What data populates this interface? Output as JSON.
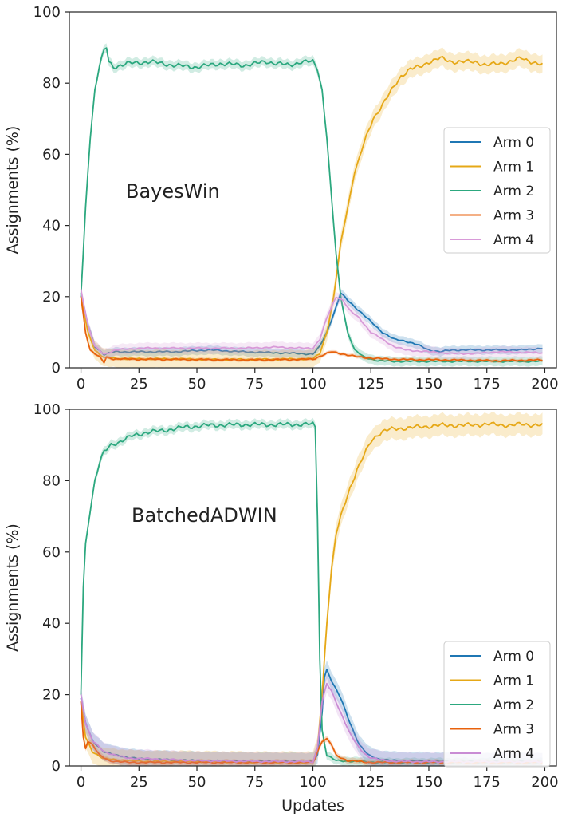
{
  "chart_data": [
    {
      "type": "line",
      "annotation": "BayesWin",
      "xlabel": "",
      "ylabel": "Assignments (%)",
      "xlim": [
        -5,
        205
      ],
      "ylim": [
        0,
        100
      ],
      "xticks": [
        0,
        25,
        50,
        75,
        100,
        125,
        150,
        175,
        200
      ],
      "yticks": [
        0,
        20,
        40,
        60,
        80,
        100
      ],
      "legend_position": "center-right",
      "series": [
        {
          "name": "Arm 0",
          "color": "#1f77b4",
          "points": [
            [
              0,
              21
            ],
            [
              3,
              12
            ],
            [
              6,
              6
            ],
            [
              10,
              3.8
            ],
            [
              15,
              4.5
            ],
            [
              25,
              4.5
            ],
            [
              40,
              4.5
            ],
            [
              55,
              5
            ],
            [
              70,
              4.5
            ],
            [
              85,
              4.2
            ],
            [
              95,
              4
            ],
            [
              100,
              3.8
            ],
            [
              103,
              6
            ],
            [
              106,
              10
            ],
            [
              110,
              17
            ],
            [
              112,
              21
            ],
            [
              115,
              19
            ],
            [
              120,
              16
            ],
            [
              125,
              13
            ],
            [
              130,
              10
            ],
            [
              135,
              8
            ],
            [
              140,
              7.5
            ],
            [
              145,
              6.5
            ],
            [
              150,
              5
            ],
            [
              155,
              4.5
            ],
            [
              160,
              5
            ],
            [
              170,
              5
            ],
            [
              180,
              5
            ],
            [
              190,
              5
            ],
            [
              199,
              5.5
            ]
          ],
          "band": 1.2
        },
        {
          "name": "Arm 1",
          "color": "#e6a817",
          "points": [
            [
              0,
              20
            ],
            [
              3,
              10
            ],
            [
              6,
              5
            ],
            [
              10,
              2.8
            ],
            [
              20,
              2.5
            ],
            [
              40,
              2.5
            ],
            [
              60,
              2.3
            ],
            [
              80,
              2.4
            ],
            [
              100,
              2.5
            ],
            [
              103,
              4
            ],
            [
              106,
              10
            ],
            [
              109,
              20
            ],
            [
              112,
              35
            ],
            [
              115,
              45
            ],
            [
              118,
              55
            ],
            [
              122,
              63
            ],
            [
              126,
              70
            ],
            [
              130,
              74
            ],
            [
              134,
              78
            ],
            [
              138,
              82
            ],
            [
              142,
              84
            ],
            [
              146,
              84.5
            ],
            [
              150,
              86
            ],
            [
              155,
              87
            ],
            [
              160,
              86
            ],
            [
              170,
              86
            ],
            [
              175,
              85
            ],
            [
              185,
              86
            ],
            [
              190,
              87
            ],
            [
              199,
              85
            ]
          ],
          "band": 2.5
        },
        {
          "name": "Arm 2",
          "color": "#2ca87f",
          "points": [
            [
              0,
              20
            ],
            [
              2,
              45
            ],
            [
              4,
              65
            ],
            [
              6,
              78
            ],
            [
              8,
              85
            ],
            [
              10,
              89
            ],
            [
              11,
              90
            ],
            [
              12,
              86
            ],
            [
              14,
              84.5
            ],
            [
              20,
              85.5
            ],
            [
              30,
              86
            ],
            [
              40,
              85
            ],
            [
              50,
              84.5
            ],
            [
              60,
              85.5
            ],
            [
              70,
              85
            ],
            [
              80,
              86
            ],
            [
              90,
              85
            ],
            [
              95,
              86
            ],
            [
              100,
              86
            ],
            [
              102,
              84
            ],
            [
              104,
              78
            ],
            [
              106,
              65
            ],
            [
              108,
              48
            ],
            [
              110,
              32
            ],
            [
              112,
              20
            ],
            [
              115,
              10
            ],
            [
              118,
              5
            ],
            [
              122,
              3
            ],
            [
              128,
              2
            ],
            [
              135,
              1.8
            ],
            [
              150,
              1.8
            ],
            [
              175,
              1.8
            ],
            [
              199,
              1.8
            ]
          ],
          "band": 1.3
        },
        {
          "name": "Arm 3",
          "color": "#e8620c",
          "points": [
            [
              0,
              20
            ],
            [
              2,
              10
            ],
            [
              4,
              5
            ],
            [
              8,
              3
            ],
            [
              10,
              1.5
            ],
            [
              11,
              3
            ],
            [
              14,
              2.5
            ],
            [
              25,
              2.4
            ],
            [
              50,
              2.3
            ],
            [
              75,
              2.2
            ],
            [
              100,
              2.4
            ],
            [
              104,
              3.5
            ],
            [
              108,
              4.5
            ],
            [
              112,
              4
            ],
            [
              120,
              3
            ],
            [
              130,
              2.5
            ],
            [
              140,
              2.3
            ],
            [
              160,
              2.2
            ],
            [
              180,
              2
            ],
            [
              199,
              2.2
            ]
          ],
          "band": 0.5
        },
        {
          "name": "Arm 4",
          "color": "#d89ad8",
          "points": [
            [
              0,
              22
            ],
            [
              3,
              12
            ],
            [
              6,
              6
            ],
            [
              10,
              3.8
            ],
            [
              15,
              5
            ],
            [
              25,
              5.5
            ],
            [
              40,
              5.5
            ],
            [
              55,
              5.5
            ],
            [
              70,
              5.5
            ],
            [
              85,
              5.8
            ],
            [
              95,
              5.5
            ],
            [
              100,
              5.5
            ],
            [
              103,
              8
            ],
            [
              106,
              14
            ],
            [
              110,
              20
            ],
            [
              113,
              19
            ],
            [
              116,
              16
            ],
            [
              120,
              14
            ],
            [
              125,
              10
            ],
            [
              130,
              8
            ],
            [
              135,
              6
            ],
            [
              140,
              5
            ],
            [
              150,
              4.5
            ],
            [
              160,
              4
            ],
            [
              170,
              4
            ],
            [
              180,
              4.5
            ],
            [
              199,
              4.2
            ]
          ],
          "band": 1.5
        }
      ]
    },
    {
      "type": "line",
      "annotation": "BatchedADWIN",
      "xlabel": "Updates",
      "ylabel": "Assignments (%)",
      "xlim": [
        -5,
        205
      ],
      "ylim": [
        0,
        100
      ],
      "xticks": [
        0,
        25,
        50,
        75,
        100,
        125,
        150,
        175,
        200
      ],
      "yticks": [
        0,
        20,
        40,
        60,
        80,
        100
      ],
      "legend_position": "lower-right",
      "series": [
        {
          "name": "Arm 0",
          "color": "#1f77b4",
          "points": [
            [
              0,
              19
            ],
            [
              2,
              12
            ],
            [
              5,
              7
            ],
            [
              10,
              4
            ],
            [
              15,
              3
            ],
            [
              25,
              2
            ],
            [
              50,
              1.5
            ],
            [
              75,
              1.3
            ],
            [
              100,
              1.2
            ],
            [
              102,
              3
            ],
            [
              104,
              15
            ],
            [
              105,
              25
            ],
            [
              106,
              27
            ],
            [
              108,
              24
            ],
            [
              112,
              19
            ],
            [
              116,
              12
            ],
            [
              120,
              6
            ],
            [
              124,
              3
            ],
            [
              128,
              2
            ],
            [
              135,
              1.5
            ],
            [
              150,
              1.3
            ],
            [
              175,
              1.2
            ],
            [
              199,
              1.2
            ]
          ],
          "band": 2.5
        },
        {
          "name": "Arm 1",
          "color": "#e6a817",
          "points": [
            [
              0,
              18
            ],
            [
              2,
              8
            ],
            [
              5,
              4
            ],
            [
              10,
              2
            ],
            [
              25,
              1.3
            ],
            [
              50,
              1.2
            ],
            [
              75,
              1
            ],
            [
              100,
              1
            ],
            [
              102,
              5
            ],
            [
              104,
              20
            ],
            [
              106,
              40
            ],
            [
              108,
              55
            ],
            [
              110,
              65
            ],
            [
              113,
              72
            ],
            [
              116,
              78
            ],
            [
              119,
              83
            ],
            [
              122,
              87
            ],
            [
              125,
              91
            ],
            [
              128,
              93
            ],
            [
              131,
              94
            ],
            [
              135,
              94.5
            ],
            [
              145,
              95
            ],
            [
              155,
              95.5
            ],
            [
              165,
              95.5
            ],
            [
              175,
              95.8
            ],
            [
              185,
              95.5
            ],
            [
              190,
              95.8
            ],
            [
              199,
              95.5
            ]
          ],
          "band": 3
        },
        {
          "name": "Arm 2",
          "color": "#2ca87f",
          "points": [
            [
              0,
              20
            ],
            [
              1,
              50
            ],
            [
              2,
              62
            ],
            [
              4,
              72
            ],
            [
              6,
              80
            ],
            [
              8,
              85
            ],
            [
              10,
              88
            ],
            [
              13,
              90
            ],
            [
              17,
              91
            ],
            [
              22,
              92.5
            ],
            [
              28,
              93.5
            ],
            [
              35,
              94
            ],
            [
              45,
              95
            ],
            [
              55,
              95.5
            ],
            [
              70,
              95.7
            ],
            [
              85,
              95.7
            ],
            [
              100,
              95.8
            ],
            [
              101,
              95
            ],
            [
              102,
              70
            ],
            [
              103,
              30
            ],
            [
              104,
              10
            ],
            [
              106,
              3
            ],
            [
              110,
              1.5
            ],
            [
              130,
              1
            ],
            [
              199,
              1
            ]
          ],
          "band": 1.2
        },
        {
          "name": "Arm 3",
          "color": "#e8620c",
          "points": [
            [
              0,
              18
            ],
            [
              1,
              8
            ],
            [
              2,
              5
            ],
            [
              3,
              7
            ],
            [
              5,
              6
            ],
            [
              8,
              3
            ],
            [
              12,
              1.5
            ],
            [
              20,
              1
            ],
            [
              50,
              1
            ],
            [
              75,
              1
            ],
            [
              100,
              1
            ],
            [
              102,
              4
            ],
            [
              104,
              7
            ],
            [
              106,
              7.5
            ],
            [
              108,
              6
            ],
            [
              110,
              3
            ],
            [
              115,
              1.5
            ],
            [
              125,
              1
            ],
            [
              150,
              1
            ],
            [
              175,
              1
            ],
            [
              199,
              1
            ]
          ],
          "band": 0.8
        },
        {
          "name": "Arm 4",
          "color": "#c98cd4",
          "points": [
            [
              0,
              20
            ],
            [
              2,
              12
            ],
            [
              5,
              7
            ],
            [
              10,
              4
            ],
            [
              15,
              3
            ],
            [
              20,
              2.2
            ],
            [
              30,
              2
            ],
            [
              50,
              1.5
            ],
            [
              75,
              1.3
            ],
            [
              100,
              1.2
            ],
            [
              102,
              5
            ],
            [
              104,
              18
            ],
            [
              106,
              23
            ],
            [
              108,
              21
            ],
            [
              112,
              15
            ],
            [
              116,
              9
            ],
            [
              120,
              5
            ],
            [
              124,
              2.5
            ],
            [
              128,
              1.8
            ],
            [
              135,
              1.3
            ],
            [
              150,
              1.2
            ],
            [
              175,
              1.2
            ],
            [
              199,
              1.2
            ]
          ],
          "band": 2.5
        }
      ]
    }
  ]
}
